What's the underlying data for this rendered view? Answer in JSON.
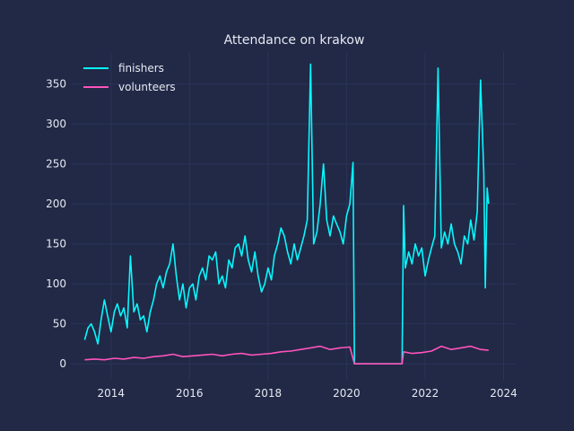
{
  "chart_data": {
    "type": "line",
    "title": "Attendance on krakow",
    "xlabel": "",
    "ylabel": "",
    "xlim": [
      "2013-01-01",
      "2024-05-01"
    ],
    "ylim": [
      -20,
      390
    ],
    "x_ticks": [
      "2014",
      "2016",
      "2018",
      "2020",
      "2022",
      "2024"
    ],
    "y_ticks": [
      0,
      50,
      100,
      150,
      200,
      250,
      300,
      350
    ],
    "grid": true,
    "legend": "top-left",
    "colors": {
      "background": "#212946",
      "grid": "#2a3459",
      "text": "#e6e9f2"
    },
    "series": [
      {
        "name": "finishers",
        "color": "#08f7fe",
        "points": [
          [
            "2013-05-01",
            30
          ],
          [
            "2013-06-01",
            45
          ],
          [
            "2013-07-01",
            50
          ],
          [
            "2013-08-01",
            40
          ],
          [
            "2013-09-01",
            25
          ],
          [
            "2013-10-01",
            55
          ],
          [
            "2013-11-01",
            80
          ],
          [
            "2013-12-01",
            60
          ],
          [
            "2014-01-01",
            40
          ],
          [
            "2014-02-01",
            65
          ],
          [
            "2014-03-01",
            75
          ],
          [
            "2014-04-01",
            60
          ],
          [
            "2014-05-01",
            70
          ],
          [
            "2014-06-01",
            45
          ],
          [
            "2014-07-01",
            135
          ],
          [
            "2014-08-01",
            65
          ],
          [
            "2014-09-01",
            75
          ],
          [
            "2014-10-01",
            55
          ],
          [
            "2014-11-01",
            60
          ],
          [
            "2014-12-01",
            40
          ],
          [
            "2015-01-01",
            65
          ],
          [
            "2015-02-01",
            80
          ],
          [
            "2015-03-01",
            100
          ],
          [
            "2015-04-01",
            110
          ],
          [
            "2015-05-01",
            95
          ],
          [
            "2015-06-01",
            115
          ],
          [
            "2015-07-01",
            125
          ],
          [
            "2015-08-01",
            150
          ],
          [
            "2015-09-01",
            110
          ],
          [
            "2015-10-01",
            80
          ],
          [
            "2015-11-01",
            100
          ],
          [
            "2015-12-01",
            70
          ],
          [
            "2016-01-01",
            95
          ],
          [
            "2016-02-01",
            100
          ],
          [
            "2016-03-01",
            80
          ],
          [
            "2016-04-01",
            110
          ],
          [
            "2016-05-01",
            120
          ],
          [
            "2016-06-01",
            105
          ],
          [
            "2016-07-01",
            135
          ],
          [
            "2016-08-01",
            130
          ],
          [
            "2016-09-01",
            140
          ],
          [
            "2016-10-01",
            100
          ],
          [
            "2016-11-01",
            110
          ],
          [
            "2016-12-01",
            95
          ],
          [
            "2017-01-01",
            130
          ],
          [
            "2017-02-01",
            120
          ],
          [
            "2017-03-01",
            145
          ],
          [
            "2017-04-01",
            150
          ],
          [
            "2017-05-01",
            135
          ],
          [
            "2017-06-01",
            160
          ],
          [
            "2017-07-01",
            130
          ],
          [
            "2017-08-01",
            115
          ],
          [
            "2017-09-01",
            140
          ],
          [
            "2017-10-01",
            110
          ],
          [
            "2017-11-01",
            90
          ],
          [
            "2017-12-01",
            100
          ],
          [
            "2018-01-01",
            120
          ],
          [
            "2018-02-01",
            105
          ],
          [
            "2018-03-01",
            135
          ],
          [
            "2018-04-01",
            150
          ],
          [
            "2018-05-01",
            170
          ],
          [
            "2018-06-01",
            160
          ],
          [
            "2018-07-01",
            140
          ],
          [
            "2018-08-01",
            125
          ],
          [
            "2018-09-01",
            150
          ],
          [
            "2018-10-01",
            130
          ],
          [
            "2018-11-01",
            145
          ],
          [
            "2018-12-01",
            160
          ],
          [
            "2019-01-01",
            180
          ],
          [
            "2019-02-01",
            375
          ],
          [
            "2019-03-01",
            150
          ],
          [
            "2019-04-01",
            165
          ],
          [
            "2019-05-01",
            200
          ],
          [
            "2019-06-01",
            250
          ],
          [
            "2019-07-01",
            180
          ],
          [
            "2019-08-01",
            160
          ],
          [
            "2019-09-01",
            185
          ],
          [
            "2019-10-01",
            175
          ],
          [
            "2019-11-01",
            165
          ],
          [
            "2019-12-01",
            150
          ],
          [
            "2020-01-01",
            185
          ],
          [
            "2020-02-01",
            200
          ],
          [
            "2020-03-01",
            252
          ],
          [
            "2020-03-15",
            0
          ],
          [
            "2021-06-01",
            0
          ],
          [
            "2021-06-15",
            198
          ],
          [
            "2021-07-01",
            120
          ],
          [
            "2021-08-01",
            140
          ],
          [
            "2021-09-01",
            125
          ],
          [
            "2021-10-01",
            150
          ],
          [
            "2021-11-01",
            135
          ],
          [
            "2021-12-01",
            145
          ],
          [
            "2022-01-01",
            110
          ],
          [
            "2022-02-01",
            130
          ],
          [
            "2022-03-01",
            145
          ],
          [
            "2022-04-01",
            160
          ],
          [
            "2022-05-01",
            370
          ],
          [
            "2022-06-01",
            145
          ],
          [
            "2022-07-01",
            165
          ],
          [
            "2022-08-01",
            150
          ],
          [
            "2022-09-01",
            175
          ],
          [
            "2022-10-01",
            150
          ],
          [
            "2022-11-01",
            140
          ],
          [
            "2022-12-01",
            125
          ],
          [
            "2023-01-01",
            160
          ],
          [
            "2023-02-01",
            150
          ],
          [
            "2023-03-01",
            180
          ],
          [
            "2023-04-01",
            155
          ],
          [
            "2023-05-01",
            190
          ],
          [
            "2023-06-01",
            355
          ],
          [
            "2023-07-01",
            240
          ],
          [
            "2023-07-15",
            95
          ],
          [
            "2023-08-01",
            220
          ],
          [
            "2023-08-15",
            200
          ]
        ]
      },
      {
        "name": "volunteers",
        "color": "#fe53bb",
        "points": [
          [
            "2013-05-01",
            5
          ],
          [
            "2013-08-01",
            6
          ],
          [
            "2013-11-01",
            5
          ],
          [
            "2014-02-01",
            7
          ],
          [
            "2014-05-01",
            6
          ],
          [
            "2014-08-01",
            8
          ],
          [
            "2014-11-01",
            7
          ],
          [
            "2015-02-01",
            9
          ],
          [
            "2015-05-01",
            10
          ],
          [
            "2015-08-01",
            12
          ],
          [
            "2015-11-01",
            9
          ],
          [
            "2016-02-01",
            10
          ],
          [
            "2016-05-01",
            11
          ],
          [
            "2016-08-01",
            12
          ],
          [
            "2016-11-01",
            10
          ],
          [
            "2017-02-01",
            12
          ],
          [
            "2017-05-01",
            13
          ],
          [
            "2017-08-01",
            11
          ],
          [
            "2017-11-01",
            12
          ],
          [
            "2018-02-01",
            13
          ],
          [
            "2018-05-01",
            15
          ],
          [
            "2018-08-01",
            16
          ],
          [
            "2018-11-01",
            18
          ],
          [
            "2019-02-01",
            20
          ],
          [
            "2019-05-01",
            22
          ],
          [
            "2019-08-01",
            18
          ],
          [
            "2019-11-01",
            20
          ],
          [
            "2020-02-01",
            21
          ],
          [
            "2020-03-15",
            0
          ],
          [
            "2021-06-01",
            0
          ],
          [
            "2021-06-15",
            15
          ],
          [
            "2021-09-01",
            13
          ],
          [
            "2021-12-01",
            14
          ],
          [
            "2022-03-01",
            16
          ],
          [
            "2022-06-01",
            22
          ],
          [
            "2022-09-01",
            18
          ],
          [
            "2022-12-01",
            20
          ],
          [
            "2023-03-01",
            22
          ],
          [
            "2023-06-01",
            18
          ],
          [
            "2023-08-15",
            17
          ]
        ]
      }
    ]
  }
}
